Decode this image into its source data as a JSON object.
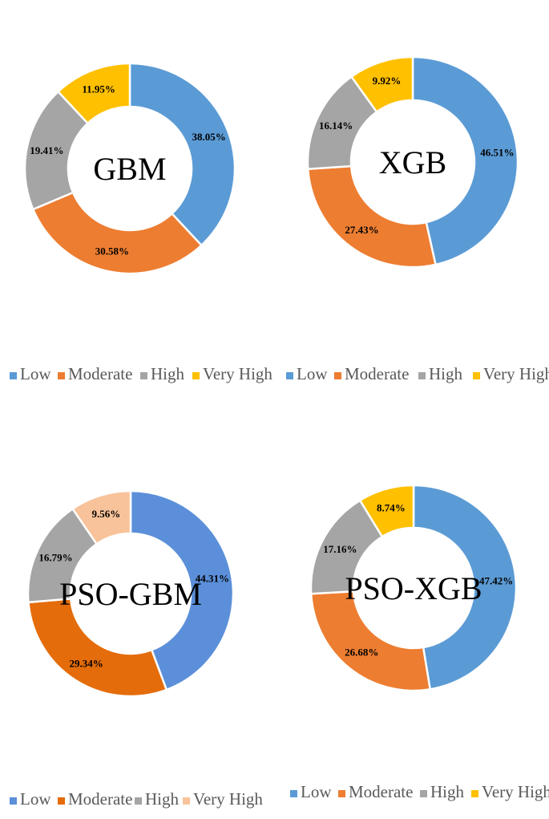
{
  "chart_data": [
    {
      "type": "pie",
      "center_label": "GBM",
      "categories": [
        "Low",
        "Moderate",
        "High",
        "Very High"
      ],
      "values": [
        38.05,
        30.58,
        19.41,
        11.95
      ],
      "labels": [
        "38.05%",
        "30.58%",
        "19.41%",
        "11.95%"
      ],
      "colors": [
        "#5B9BD5",
        "#ED7D31",
        "#A5A5A5",
        "#FFC000"
      ],
      "legend": [
        "Low",
        "Moderate",
        "High",
        "Very High"
      ],
      "legend_position": "bottom"
    },
    {
      "type": "pie",
      "center_label": "XGB",
      "categories": [
        "Low",
        "Moderate",
        "High",
        "Very High"
      ],
      "values": [
        46.51,
        27.43,
        16.14,
        9.92
      ],
      "labels": [
        "46.51%",
        "27.43%",
        "16.14%",
        "9.92%"
      ],
      "colors": [
        "#5B9BD5",
        "#ED7D31",
        "#A5A5A5",
        "#FFC000"
      ],
      "legend": [
        "Low",
        "Moderate",
        "High",
        "Very High"
      ],
      "legend_position": "bottom"
    },
    {
      "type": "pie",
      "center_label": "PSO-GBM",
      "categories": [
        "Low",
        "Moderate",
        "High",
        "Very High"
      ],
      "values": [
        44.31,
        29.34,
        16.79,
        9.56
      ],
      "labels": [
        "44.31%",
        "29.34%",
        "16.79%",
        "9.56%"
      ],
      "colors": [
        "#5B8FD9",
        "#E46C0A",
        "#A5A5A5",
        "#F8C39A"
      ],
      "legend": [
        "Low",
        "Moderate",
        "High",
        "Very High"
      ],
      "legend_position": "bottom"
    },
    {
      "type": "pie",
      "center_label": "PSO-XGB",
      "categories": [
        "Low",
        "Moderate",
        "High",
        "Very High"
      ],
      "values": [
        47.42,
        26.68,
        17.16,
        8.74
      ],
      "labels": [
        "47.42%",
        "26.68%",
        "17.16%",
        "8.74%"
      ],
      "colors": [
        "#5B9BD5",
        "#ED7D31",
        "#A5A5A5",
        "#FFC000"
      ],
      "legend": [
        "Low",
        "Moderate",
        "High",
        "Very High"
      ],
      "legend_position": "bottom"
    }
  ]
}
